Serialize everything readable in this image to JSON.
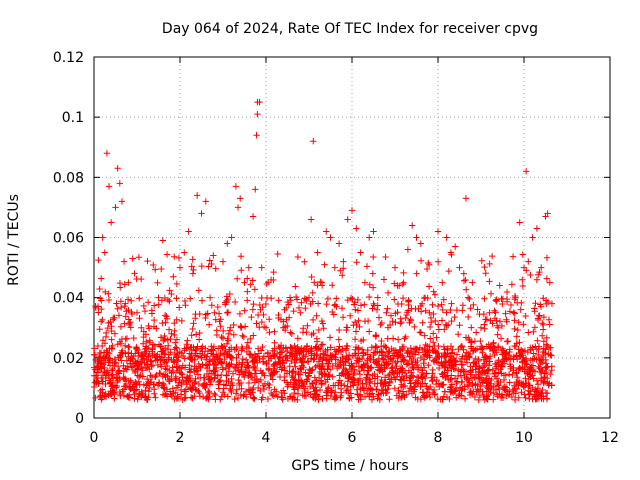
{
  "chart_data": {
    "type": "scatter",
    "title": "Day 064 of 2024, Rate Of TEC Index for receiver cpvg",
    "xlabel": "GPS time / hours",
    "ylabel": "ROTI / TECUs",
    "xlim": [
      0,
      12
    ],
    "ylim": [
      0,
      0.12
    ],
    "x_ticks": [
      0,
      2,
      4,
      6,
      8,
      10,
      12
    ],
    "y_ticks": [
      0,
      0.02,
      0.04,
      0.06,
      0.08,
      0.1,
      0.12
    ],
    "x_tick_labels": [
      "0",
      "2",
      "4",
      "6",
      "8",
      "10",
      "12"
    ],
    "y_tick_labels": [
      "0",
      "0.02",
      "0.04",
      "0.06",
      "0.08",
      "0.1",
      "0.12"
    ],
    "grid": true,
    "marker": "+",
    "color": "#ff0000",
    "series": [
      {
        "name": "ROTI",
        "points": [
          [
            0.05,
            0.012
          ],
          [
            0.1,
            0.018
          ],
          [
            0.15,
            0.009
          ],
          [
            0.2,
            0.06
          ],
          [
            0.25,
            0.055
          ],
          [
            0.3,
            0.088
          ],
          [
            0.35,
            0.077
          ],
          [
            0.4,
            0.065
          ],
          [
            0.5,
            0.07
          ],
          [
            0.55,
            0.083
          ],
          [
            0.6,
            0.078
          ],
          [
            0.65,
            0.072
          ],
          [
            0.7,
            0.052
          ],
          [
            0.8,
            0.045
          ],
          [
            0.9,
            0.053
          ],
          [
            1.0,
            0.035
          ],
          [
            1.1,
            0.03
          ],
          [
            1.2,
            0.022
          ],
          [
            1.3,
            0.025
          ],
          [
            1.5,
            0.04
          ],
          [
            1.6,
            0.059
          ],
          [
            1.7,
            0.033
          ],
          [
            1.8,
            0.028
          ],
          [
            2.0,
            0.05
          ],
          [
            2.1,
            0.055
          ],
          [
            2.2,
            0.062
          ],
          [
            2.3,
            0.048
          ],
          [
            2.4,
            0.074
          ],
          [
            2.5,
            0.068
          ],
          [
            2.6,
            0.072
          ],
          [
            2.7,
            0.04
          ],
          [
            2.8,
            0.035
          ],
          [
            3.0,
            0.052
          ],
          [
            3.1,
            0.058
          ],
          [
            3.2,
            0.06
          ],
          [
            3.3,
            0.077
          ],
          [
            3.35,
            0.07
          ],
          [
            3.4,
            0.073
          ],
          [
            3.5,
            0.045
          ],
          [
            3.6,
            0.05
          ],
          [
            3.7,
            0.067
          ],
          [
            3.75,
            0.076
          ],
          [
            3.8,
            0.105
          ],
          [
            3.8,
            0.101
          ],
          [
            3.78,
            0.094
          ],
          [
            3.85,
            0.105
          ],
          [
            3.9,
            0.05
          ],
          [
            4.0,
            0.03
          ],
          [
            4.2,
            0.025
          ],
          [
            4.4,
            0.03
          ],
          [
            4.6,
            0.028
          ],
          [
            4.8,
            0.035
          ],
          [
            5.0,
            0.04
          ],
          [
            5.05,
            0.066
          ],
          [
            5.1,
            0.092
          ],
          [
            5.2,
            0.055
          ],
          [
            5.3,
            0.045
          ],
          [
            5.4,
            0.062
          ],
          [
            5.5,
            0.06
          ],
          [
            5.6,
            0.05
          ],
          [
            5.7,
            0.058
          ],
          [
            5.8,
            0.052
          ],
          [
            5.9,
            0.066
          ],
          [
            6.0,
            0.069
          ],
          [
            6.1,
            0.063
          ],
          [
            6.2,
            0.055
          ],
          [
            6.3,
            0.045
          ],
          [
            6.4,
            0.06
          ],
          [
            6.5,
            0.062
          ],
          [
            6.6,
            0.04
          ],
          [
            6.8,
            0.035
          ],
          [
            7.0,
            0.05
          ],
          [
            7.2,
            0.045
          ],
          [
            7.3,
            0.056
          ],
          [
            7.4,
            0.064
          ],
          [
            7.5,
            0.06
          ],
          [
            7.6,
            0.058
          ],
          [
            7.7,
            0.04
          ],
          [
            7.8,
            0.035
          ],
          [
            7.9,
            0.042
          ],
          [
            8.0,
            0.062
          ],
          [
            8.1,
            0.045
          ],
          [
            8.2,
            0.06
          ],
          [
            8.3,
            0.055
          ],
          [
            8.4,
            0.057
          ],
          [
            8.5,
            0.05
          ],
          [
            8.6,
            0.048
          ],
          [
            8.65,
            0.073
          ],
          [
            8.7,
            0.04
          ],
          [
            8.8,
            0.045
          ],
          [
            9.0,
            0.03
          ],
          [
            9.2,
            0.035
          ],
          [
            9.4,
            0.03
          ],
          [
            9.6,
            0.032
          ],
          [
            9.8,
            0.04
          ],
          [
            9.9,
            0.065
          ],
          [
            10.0,
            0.05
          ],
          [
            10.05,
            0.082
          ],
          [
            10.1,
            0.052
          ],
          [
            10.2,
            0.06
          ],
          [
            10.3,
            0.063
          ],
          [
            10.4,
            0.05
          ],
          [
            10.5,
            0.067
          ],
          [
            10.55,
            0.068
          ],
          [
            10.6,
            0.045
          ],
          [
            10.65,
            0.038
          ]
        ]
      }
    ]
  }
}
